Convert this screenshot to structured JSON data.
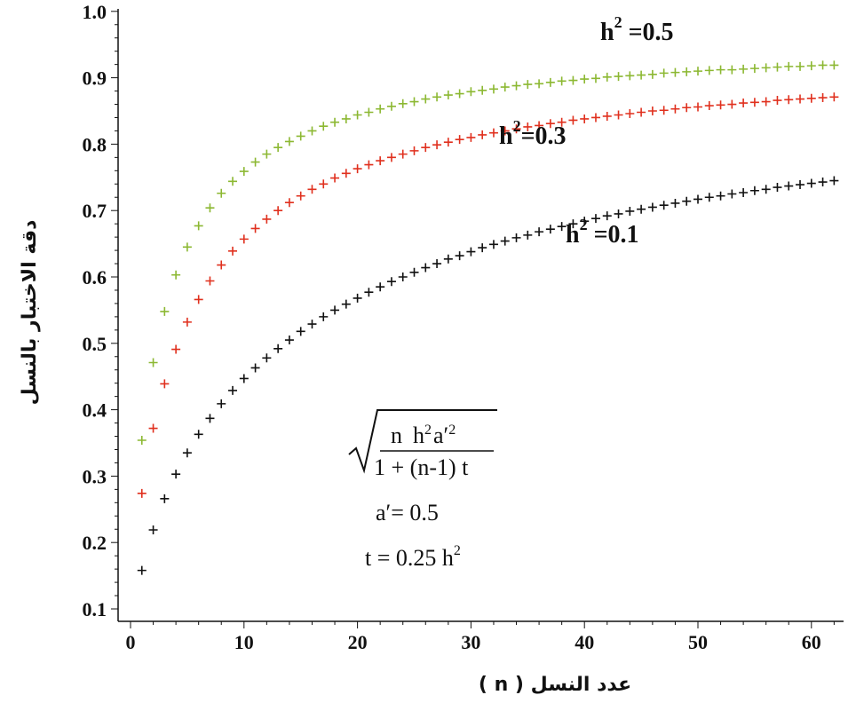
{
  "chart_data": {
    "type": "scatter",
    "title": "",
    "xlabel": "عدد النسل ( n )",
    "ylabel": "دقة الاختبار بالنسل",
    "xlim": [
      0,
      62
    ],
    "ylim": [
      0.1,
      1.0
    ],
    "x_ticks": [
      "0",
      "10",
      "20",
      "30",
      "40",
      "50",
      "60"
    ],
    "y_ticks": [
      "0.1",
      "0.2",
      "0.3",
      "0.4",
      "0.5",
      "0.6",
      "0.7",
      "0.8",
      "0.9",
      "1.0"
    ],
    "marker": "+",
    "grid": false,
    "x": [
      1,
      2,
      3,
      4,
      5,
      6,
      7,
      8,
      9,
      10,
      11,
      12,
      13,
      14,
      15,
      16,
      17,
      18,
      19,
      20,
      21,
      22,
      23,
      24,
      25,
      26,
      27,
      28,
      29,
      30,
      31,
      32,
      33,
      34,
      35,
      36,
      37,
      38,
      39,
      40,
      41,
      42,
      43,
      44,
      45,
      46,
      47,
      48,
      49,
      50,
      51,
      52,
      53,
      54,
      55,
      56,
      57,
      58,
      59,
      60,
      61,
      62
    ],
    "series": [
      {
        "h2": 0.5,
        "color": "#8cb832",
        "values": [
          0.354,
          0.471,
          0.548,
          0.603,
          0.645,
          0.677,
          0.704,
          0.726,
          0.744,
          0.759,
          0.773,
          0.785,
          0.795,
          0.804,
          0.812,
          0.82,
          0.827,
          0.833,
          0.838,
          0.844,
          0.848,
          0.853,
          0.857,
          0.861,
          0.864,
          0.868,
          0.871,
          0.874,
          0.876,
          0.879,
          0.881,
          0.883,
          0.886,
          0.888,
          0.89,
          0.891,
          0.893,
          0.895,
          0.896,
          0.898,
          0.899,
          0.901,
          0.902,
          0.903,
          0.904,
          0.905,
          0.907,
          0.908,
          0.909,
          0.91,
          0.911,
          0.912,
          0.912,
          0.913,
          0.914,
          0.915,
          0.916,
          0.917,
          0.917,
          0.918,
          0.919,
          0.919
        ]
      },
      {
        "h2": 0.3,
        "color": "#e0301e",
        "values": [
          0.274,
          0.372,
          0.439,
          0.491,
          0.532,
          0.566,
          0.594,
          0.618,
          0.639,
          0.657,
          0.673,
          0.687,
          0.7,
          0.712,
          0.722,
          0.732,
          0.74,
          0.749,
          0.756,
          0.763,
          0.769,
          0.775,
          0.78,
          0.785,
          0.79,
          0.795,
          0.799,
          0.803,
          0.807,
          0.81,
          0.814,
          0.817,
          0.82,
          0.823,
          0.826,
          0.828,
          0.831,
          0.833,
          0.836,
          0.838,
          0.84,
          0.842,
          0.844,
          0.846,
          0.848,
          0.85,
          0.851,
          0.853,
          0.855,
          0.856,
          0.858,
          0.859,
          0.86,
          0.862,
          0.863,
          0.864,
          0.866,
          0.867,
          0.868,
          0.869,
          0.87,
          0.871
        ]
      },
      {
        "h2": 0.1,
        "color": "#111111",
        "values": [
          0.158,
          0.219,
          0.266,
          0.303,
          0.335,
          0.363,
          0.387,
          0.409,
          0.429,
          0.447,
          0.463,
          0.478,
          0.492,
          0.505,
          0.518,
          0.529,
          0.54,
          0.55,
          0.559,
          0.568,
          0.577,
          0.585,
          0.593,
          0.6,
          0.607,
          0.614,
          0.62,
          0.627,
          0.632,
          0.638,
          0.644,
          0.649,
          0.654,
          0.659,
          0.663,
          0.668,
          0.672,
          0.676,
          0.68,
          0.684,
          0.688,
          0.692,
          0.695,
          0.699,
          0.702,
          0.705,
          0.708,
          0.711,
          0.714,
          0.717,
          0.72,
          0.722,
          0.725,
          0.727,
          0.73,
          0.732,
          0.735,
          0.737,
          0.739,
          0.741,
          0.743,
          0.745
        ]
      }
    ],
    "annotations": {
      "h05": {
        "base": "h",
        "sup": "2",
        "rest": " =0.5"
      },
      "h03": {
        "base": "h",
        "sup": "2",
        "rest": "=0.3"
      },
      "h01": {
        "base": "h",
        "sup": "2",
        "rest": " =0.1"
      }
    },
    "formula": {
      "numerator_n": "n",
      "numerator_h": "h",
      "numerator_h_sup": "2",
      "numerator_a": "a′",
      "numerator_a_sup": "2",
      "denominator": "1 + (n-1) t",
      "a_prime": "a′= 0.5",
      "t_base": "t = 0.25 h",
      "t_sup": "2"
    }
  }
}
